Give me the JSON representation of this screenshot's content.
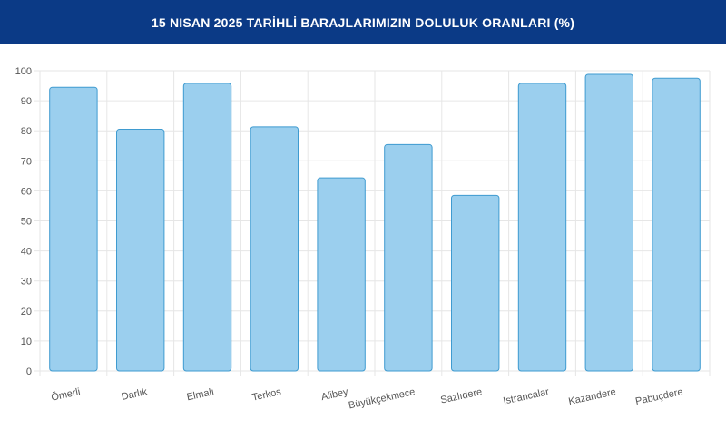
{
  "header": {
    "title": "15 NISAN 2025 TARİHLİ BARAJLARIMIZIN DOLULUK ORANLARI (%)"
  },
  "colors": {
    "header_bg": "#0b3a86",
    "bar_fill": "#9bcfee",
    "bar_stroke": "#3f9bd0",
    "grid": "#e6e6e6"
  },
  "chart_data": {
    "type": "bar",
    "title": "15 NISAN 2025 TARİHLİ BARAJLARIMIZIN DOLULUK ORANLARI (%)",
    "categories": [
      "Ömerli",
      "Darlık",
      "Elmalı",
      "Terkos",
      "Alibey",
      "Büyükçekmece",
      "Sazlıdere",
      "Istrancalar",
      "Kazandere",
      "Pabuçdere"
    ],
    "values": [
      94.5,
      80.5,
      95.8,
      81.3,
      64.3,
      75.4,
      58.5,
      95.8,
      98.8,
      97.5
    ],
    "xlabel": "",
    "ylabel": "",
    "ylim": [
      0,
      100
    ],
    "yticks": [
      0,
      10,
      20,
      30,
      40,
      50,
      60,
      70,
      80,
      90,
      100
    ],
    "grid": true,
    "legend": "none"
  }
}
